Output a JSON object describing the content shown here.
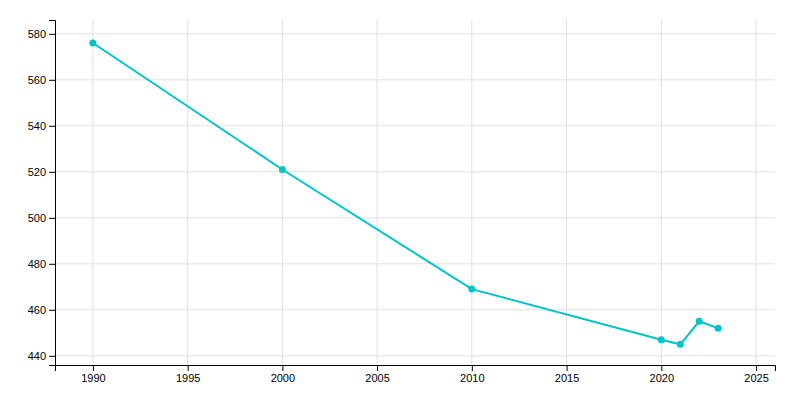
{
  "chart_data": {
    "type": "line",
    "x": [
      1990,
      2000,
      2010,
      2020,
      2021,
      2022,
      2023
    ],
    "values": [
      576,
      521,
      469,
      447,
      445,
      455,
      452
    ],
    "color": "#00C5C8",
    "marker": "circle",
    "xlim": [
      1988,
      2026
    ],
    "ylim": [
      436,
      586
    ],
    "xticks": [
      1990,
      1995,
      2000,
      2005,
      2010,
      2015,
      2020,
      2025
    ],
    "yticks": [
      440,
      460,
      480,
      500,
      520,
      540,
      560,
      580
    ],
    "grid": true
  }
}
